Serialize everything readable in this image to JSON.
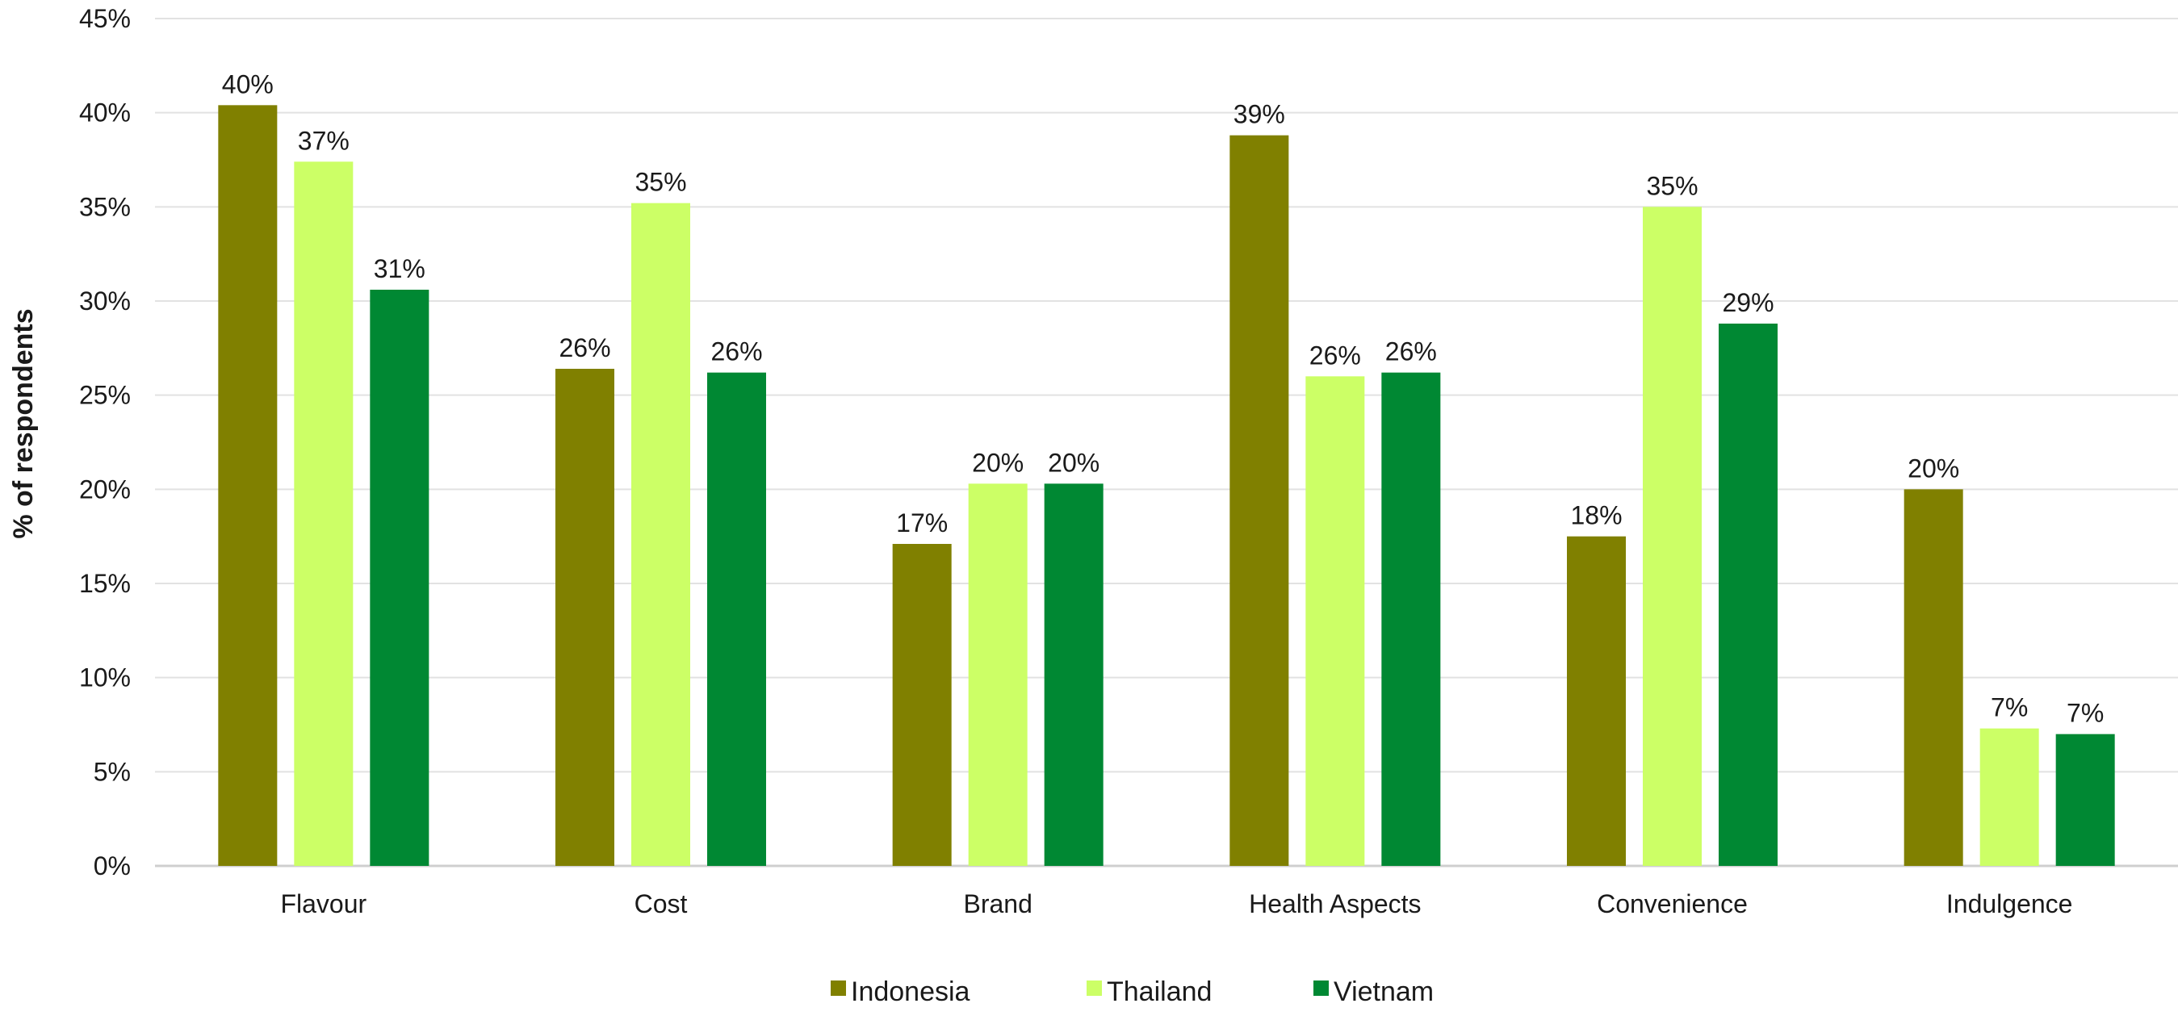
{
  "chart_data": {
    "type": "bar",
    "title": "",
    "xlabel": "",
    "ylabel": "% of respondents",
    "ylim": [
      0,
      45
    ],
    "yticks": [
      0,
      5,
      10,
      15,
      20,
      25,
      30,
      35,
      40,
      45
    ],
    "ytick_format": "{v}%",
    "grid": "horizontal",
    "legend_position": "bottom",
    "categories": [
      "Flavour",
      "Cost",
      "Brand",
      "Health Aspects",
      "Convenience",
      "Indulgence"
    ],
    "series": [
      {
        "name": "Indonesia",
        "color": "#808000",
        "values": [
          40.4,
          26.4,
          17.1,
          38.8,
          17.5,
          20.0
        ],
        "labels": [
          "40%",
          "26%",
          "17%",
          "39%",
          "18%",
          "20%"
        ]
      },
      {
        "name": "Thailand",
        "color": "#CCFF66",
        "values": [
          37.4,
          35.2,
          20.3,
          26.0,
          35.0,
          7.3
        ],
        "labels": [
          "37%",
          "35%",
          "20%",
          "26%",
          "35%",
          "7%"
        ]
      },
      {
        "name": "Vietnam",
        "color": "#008833",
        "values": [
          30.6,
          26.2,
          20.3,
          26.2,
          28.8,
          7.0
        ],
        "labels": [
          "31%",
          "26%",
          "20%",
          "26%",
          "29%",
          "7%"
        ]
      }
    ]
  }
}
